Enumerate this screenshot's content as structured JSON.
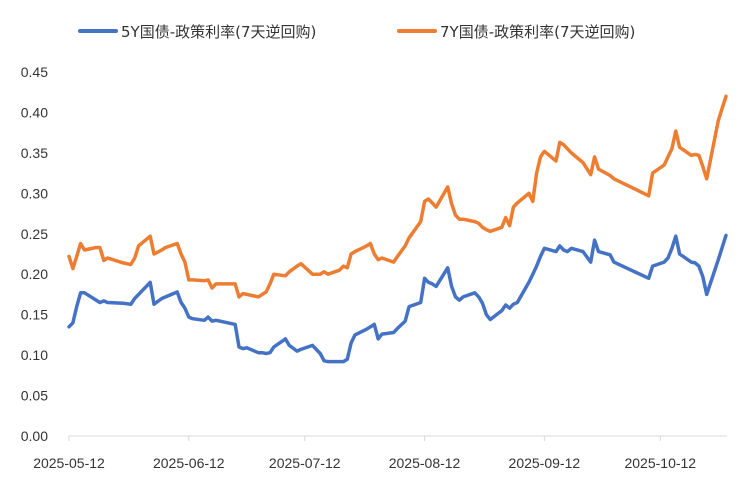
{
  "chart_data": {
    "type": "line",
    "title": "",
    "xlabel": "",
    "ylabel": "",
    "ylim": [
      0,
      0.45
    ],
    "yticks": [
      "0.00",
      "0.05",
      "0.10",
      "0.15",
      "0.20",
      "0.25",
      "0.30",
      "0.35",
      "0.40",
      "0.45"
    ],
    "xticks": [
      "2025-05-12",
      "2025-06-12",
      "2025-07-12",
      "2025-08-12",
      "2025-09-12",
      "2025-10-12"
    ],
    "x_start": "2025-05-12",
    "x_end": "2025-10-29",
    "grid": false,
    "legend_position": "top",
    "series": [
      {
        "name": "5Y国债-政策利率(7天逆回购)",
        "color": "#4472C4",
        "points": [
          [
            "2025-05-12",
            0.135
          ],
          [
            "2025-05-13",
            0.14
          ],
          [
            "2025-05-14",
            0.16
          ],
          [
            "2025-05-15",
            0.177
          ],
          [
            "2025-05-16",
            0.177
          ],
          [
            "2025-05-19",
            0.168
          ],
          [
            "2025-05-20",
            0.165
          ],
          [
            "2025-05-21",
            0.167
          ],
          [
            "2025-05-22",
            0.165
          ],
          [
            "2025-05-26",
            0.164
          ],
          [
            "2025-05-28",
            0.163
          ],
          [
            "2025-05-29",
            0.17
          ],
          [
            "2025-05-30",
            0.175
          ],
          [
            "2025-06-02",
            0.19
          ],
          [
            "2025-06-03",
            0.163
          ],
          [
            "2025-06-05",
            0.17
          ],
          [
            "2025-06-06",
            0.172
          ],
          [
            "2025-06-09",
            0.178
          ],
          [
            "2025-06-10",
            0.165
          ],
          [
            "2025-06-11",
            0.158
          ],
          [
            "2025-06-12",
            0.147
          ],
          [
            "2025-06-13",
            0.145
          ],
          [
            "2025-06-16",
            0.143
          ],
          [
            "2025-06-17",
            0.147
          ],
          [
            "2025-06-18",
            0.142
          ],
          [
            "2025-06-19",
            0.143
          ],
          [
            "2025-06-20",
            0.142
          ],
          [
            "2025-06-24",
            0.138
          ],
          [
            "2025-06-25",
            0.11
          ],
          [
            "2025-06-26",
            0.108
          ],
          [
            "2025-06-27",
            0.109
          ],
          [
            "2025-06-30",
            0.103
          ],
          [
            "2025-07-01",
            0.103
          ],
          [
            "2025-07-02",
            0.102
          ],
          [
            "2025-07-03",
            0.103
          ],
          [
            "2025-07-04",
            0.11
          ],
          [
            "2025-07-07",
            0.12
          ],
          [
            "2025-07-08",
            0.112
          ],
          [
            "2025-07-10",
            0.105
          ],
          [
            "2025-07-11",
            0.107
          ],
          [
            "2025-07-14",
            0.112
          ],
          [
            "2025-07-16",
            0.102
          ],
          [
            "2025-07-17",
            0.093
          ],
          [
            "2025-07-18",
            0.092
          ],
          [
            "2025-07-21",
            0.092
          ],
          [
            "2025-07-22",
            0.092
          ],
          [
            "2025-07-23",
            0.095
          ],
          [
            "2025-07-24",
            0.115
          ],
          [
            "2025-07-25",
            0.125
          ],
          [
            "2025-07-28",
            0.132
          ],
          [
            "2025-07-29",
            0.135
          ],
          [
            "2025-07-30",
            0.138
          ],
          [
            "2025-07-31",
            0.12
          ],
          [
            "2025-08-01",
            0.126
          ],
          [
            "2025-08-04",
            0.128
          ],
          [
            "2025-08-05",
            0.133
          ],
          [
            "2025-08-07",
            0.142
          ],
          [
            "2025-08-08",
            0.16
          ],
          [
            "2025-08-11",
            0.165
          ],
          [
            "2025-08-12",
            0.195
          ],
          [
            "2025-08-13",
            0.19
          ],
          [
            "2025-08-14",
            0.188
          ],
          [
            "2025-08-15",
            0.185
          ],
          [
            "2025-08-18",
            0.208
          ],
          [
            "2025-08-19",
            0.185
          ],
          [
            "2025-08-20",
            0.172
          ],
          [
            "2025-08-21",
            0.168
          ],
          [
            "2025-08-22",
            0.172
          ],
          [
            "2025-08-25",
            0.177
          ],
          [
            "2025-08-26",
            0.172
          ],
          [
            "2025-08-27",
            0.164
          ],
          [
            "2025-08-28",
            0.15
          ],
          [
            "2025-08-29",
            0.144
          ],
          [
            "2025-09-01",
            0.155
          ],
          [
            "2025-09-02",
            0.162
          ],
          [
            "2025-09-03",
            0.158
          ],
          [
            "2025-09-04",
            0.163
          ],
          [
            "2025-09-05",
            0.165
          ],
          [
            "2025-09-08",
            0.19
          ],
          [
            "2025-09-09",
            0.2
          ],
          [
            "2025-09-10",
            0.21
          ],
          [
            "2025-09-11",
            0.222
          ],
          [
            "2025-09-12",
            0.232
          ],
          [
            "2025-09-15",
            0.228
          ],
          [
            "2025-09-16",
            0.235
          ],
          [
            "2025-09-17",
            0.23
          ],
          [
            "2025-09-18",
            0.228
          ],
          [
            "2025-09-19",
            0.232
          ],
          [
            "2025-09-22",
            0.228
          ],
          [
            "2025-09-24",
            0.215
          ],
          [
            "2025-09-25",
            0.242
          ],
          [
            "2025-09-26",
            0.228
          ],
          [
            "2025-09-29",
            0.224
          ],
          [
            "2025-09-30",
            0.215
          ],
          [
            "2025-10-09",
            0.195
          ],
          [
            "2025-10-10",
            0.21
          ],
          [
            "2025-10-13",
            0.215
          ],
          [
            "2025-10-14",
            0.22
          ],
          [
            "2025-10-15",
            0.232
          ],
          [
            "2025-10-16",
            0.247
          ],
          [
            "2025-10-17",
            0.225
          ],
          [
            "2025-10-20",
            0.215
          ],
          [
            "2025-10-21",
            0.214
          ],
          [
            "2025-10-22",
            0.21
          ],
          [
            "2025-10-23",
            0.197
          ],
          [
            "2025-10-24",
            0.175
          ],
          [
            "2025-10-27",
            0.218
          ],
          [
            "2025-10-29",
            0.248
          ]
        ]
      },
      {
        "name": "7Y国债-政策利率(7天逆回购)",
        "color": "#ED7D31",
        "points": [
          [
            "2025-05-12",
            0.222
          ],
          [
            "2025-05-13",
            0.207
          ],
          [
            "2025-05-14",
            0.222
          ],
          [
            "2025-05-15",
            0.238
          ],
          [
            "2025-05-16",
            0.23
          ],
          [
            "2025-05-19",
            0.233
          ],
          [
            "2025-05-20",
            0.233
          ],
          [
            "2025-05-21",
            0.217
          ],
          [
            "2025-05-22",
            0.22
          ],
          [
            "2025-05-26",
            0.214
          ],
          [
            "2025-05-28",
            0.212
          ],
          [
            "2025-05-29",
            0.22
          ],
          [
            "2025-05-30",
            0.235
          ],
          [
            "2025-06-02",
            0.247
          ],
          [
            "2025-06-03",
            0.225
          ],
          [
            "2025-06-05",
            0.23
          ],
          [
            "2025-06-06",
            0.233
          ],
          [
            "2025-06-09",
            0.238
          ],
          [
            "2025-06-10",
            0.225
          ],
          [
            "2025-06-11",
            0.215
          ],
          [
            "2025-06-12",
            0.193
          ],
          [
            "2025-06-13",
            0.193
          ],
          [
            "2025-06-16",
            0.192
          ],
          [
            "2025-06-17",
            0.193
          ],
          [
            "2025-06-18",
            0.183
          ],
          [
            "2025-06-19",
            0.188
          ],
          [
            "2025-06-20",
            0.188
          ],
          [
            "2025-06-24",
            0.188
          ],
          [
            "2025-06-25",
            0.172
          ],
          [
            "2025-06-26",
            0.176
          ],
          [
            "2025-06-27",
            0.175
          ],
          [
            "2025-06-30",
            0.172
          ],
          [
            "2025-07-01",
            0.175
          ],
          [
            "2025-07-02",
            0.178
          ],
          [
            "2025-07-03",
            0.188
          ],
          [
            "2025-07-04",
            0.2
          ],
          [
            "2025-07-07",
            0.198
          ],
          [
            "2025-07-08",
            0.203
          ],
          [
            "2025-07-10",
            0.21
          ],
          [
            "2025-07-11",
            0.213
          ],
          [
            "2025-07-14",
            0.2
          ],
          [
            "2025-07-16",
            0.2
          ],
          [
            "2025-07-17",
            0.203
          ],
          [
            "2025-07-18",
            0.2
          ],
          [
            "2025-07-21",
            0.205
          ],
          [
            "2025-07-22",
            0.21
          ],
          [
            "2025-07-23",
            0.208
          ],
          [
            "2025-07-24",
            0.225
          ],
          [
            "2025-07-25",
            0.228
          ],
          [
            "2025-07-28",
            0.235
          ],
          [
            "2025-07-29",
            0.238
          ],
          [
            "2025-07-30",
            0.225
          ],
          [
            "2025-07-31",
            0.218
          ],
          [
            "2025-08-01",
            0.22
          ],
          [
            "2025-08-04",
            0.215
          ],
          [
            "2025-08-05",
            0.222
          ],
          [
            "2025-08-07",
            0.235
          ],
          [
            "2025-08-08",
            0.245
          ],
          [
            "2025-08-11",
            0.265
          ],
          [
            "2025-08-12",
            0.29
          ],
          [
            "2025-08-13",
            0.293
          ],
          [
            "2025-08-14",
            0.288
          ],
          [
            "2025-08-15",
            0.283
          ],
          [
            "2025-08-18",
            0.308
          ],
          [
            "2025-08-19",
            0.287
          ],
          [
            "2025-08-20",
            0.273
          ],
          [
            "2025-08-21",
            0.268
          ],
          [
            "2025-08-22",
            0.268
          ],
          [
            "2025-08-25",
            0.265
          ],
          [
            "2025-08-26",
            0.263
          ],
          [
            "2025-08-27",
            0.258
          ],
          [
            "2025-08-28",
            0.255
          ],
          [
            "2025-08-29",
            0.253
          ],
          [
            "2025-09-01",
            0.258
          ],
          [
            "2025-09-02",
            0.27
          ],
          [
            "2025-09-03",
            0.26
          ],
          [
            "2025-09-04",
            0.283
          ],
          [
            "2025-09-05",
            0.288
          ],
          [
            "2025-09-08",
            0.3
          ],
          [
            "2025-09-09",
            0.29
          ],
          [
            "2025-09-10",
            0.325
          ],
          [
            "2025-09-11",
            0.345
          ],
          [
            "2025-09-12",
            0.352
          ],
          [
            "2025-09-15",
            0.34
          ],
          [
            "2025-09-16",
            0.363
          ],
          [
            "2025-09-17",
            0.36
          ],
          [
            "2025-09-18",
            0.355
          ],
          [
            "2025-09-19",
            0.35
          ],
          [
            "2025-09-22",
            0.338
          ],
          [
            "2025-09-24",
            0.323
          ],
          [
            "2025-09-25",
            0.345
          ],
          [
            "2025-09-26",
            0.33
          ],
          [
            "2025-09-29",
            0.322
          ],
          [
            "2025-09-30",
            0.318
          ],
          [
            "2025-10-09",
            0.297
          ],
          [
            "2025-10-10",
            0.325
          ],
          [
            "2025-10-13",
            0.335
          ],
          [
            "2025-10-14",
            0.345
          ],
          [
            "2025-10-15",
            0.355
          ],
          [
            "2025-10-16",
            0.377
          ],
          [
            "2025-10-17",
            0.357
          ],
          [
            "2025-10-20",
            0.347
          ],
          [
            "2025-10-21",
            0.348
          ],
          [
            "2025-10-22",
            0.347
          ],
          [
            "2025-10-23",
            0.333
          ],
          [
            "2025-10-24",
            0.318
          ],
          [
            "2025-10-27",
            0.39
          ],
          [
            "2025-10-29",
            0.42
          ]
        ]
      }
    ]
  }
}
